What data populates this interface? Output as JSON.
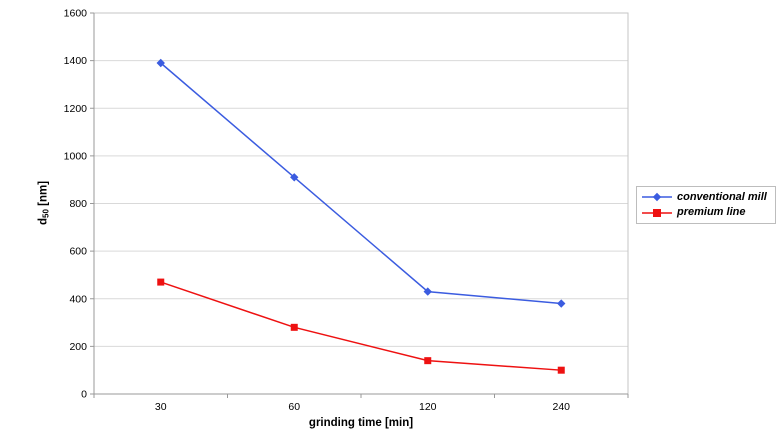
{
  "chart_data": {
    "type": "line",
    "title": "",
    "categories": [
      "30",
      "60",
      "120",
      "240"
    ],
    "series": [
      {
        "name": "conventional mill",
        "color": "#3b5ce0",
        "marker": "diamond",
        "values": [
          1390,
          910,
          430,
          380
        ]
      },
      {
        "name": "premium line",
        "color": "#ee1111",
        "marker": "square",
        "values": [
          470,
          280,
          140,
          100
        ]
      }
    ],
    "xlabel": "grinding time [min]",
    "ylabel": "d50 [nm]",
    "ylabel_parts": {
      "base": "d",
      "sub": "50",
      "unit": " [nm]"
    },
    "ylim": [
      0,
      1600
    ],
    "ytick_step": 200,
    "grid": true,
    "legend_position": "right-outside",
    "styles": {
      "gridline_color": "#d9d9d9",
      "plot_border_color": "#c6c6c6",
      "axis_color": "#999999",
      "legend_border_color": "#bdbdbd",
      "text_color": "#000000",
      "background": "#ffffff"
    }
  }
}
